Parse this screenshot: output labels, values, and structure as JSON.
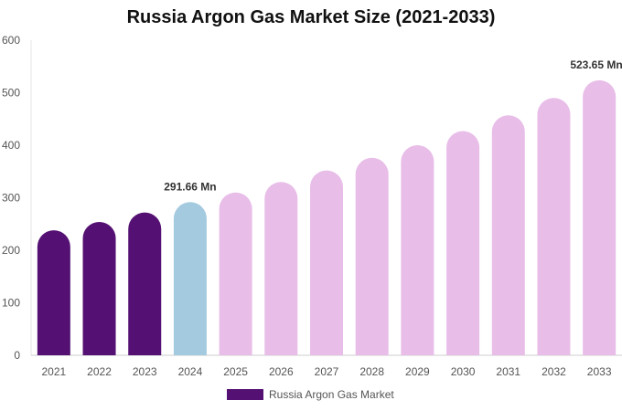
{
  "chart_data": {
    "type": "bar",
    "title": "Russia Argon Gas Market Size (2021-2033)",
    "categories": [
      "2021",
      "2022",
      "2023",
      "2024",
      "2025",
      "2026",
      "2027",
      "2028",
      "2029",
      "2030",
      "2031",
      "2032",
      "2033"
    ],
    "series": [
      {
        "name": "Russia Argon Gas Market",
        "values": [
          238,
          254,
          272,
          291.66,
          310,
          330,
          352,
          376,
          400,
          427,
          457,
          490,
          523.65
        ]
      }
    ],
    "data_labels": [
      {
        "index": 3,
        "text": "291.66 Mn"
      },
      {
        "index": 12,
        "text": "523.65 Mn"
      }
    ],
    "ylim": [
      0,
      600
    ],
    "yticks": [
      0,
      100,
      200,
      300,
      400,
      500,
      600
    ],
    "xlabel": "",
    "ylabel": "",
    "grid": false,
    "legend_position": "bottom",
    "colors": {
      "historical": "#541173",
      "base_year": "#a4cadf",
      "forecast": "#e8bde8",
      "legend_swatch": "#541173"
    }
  }
}
